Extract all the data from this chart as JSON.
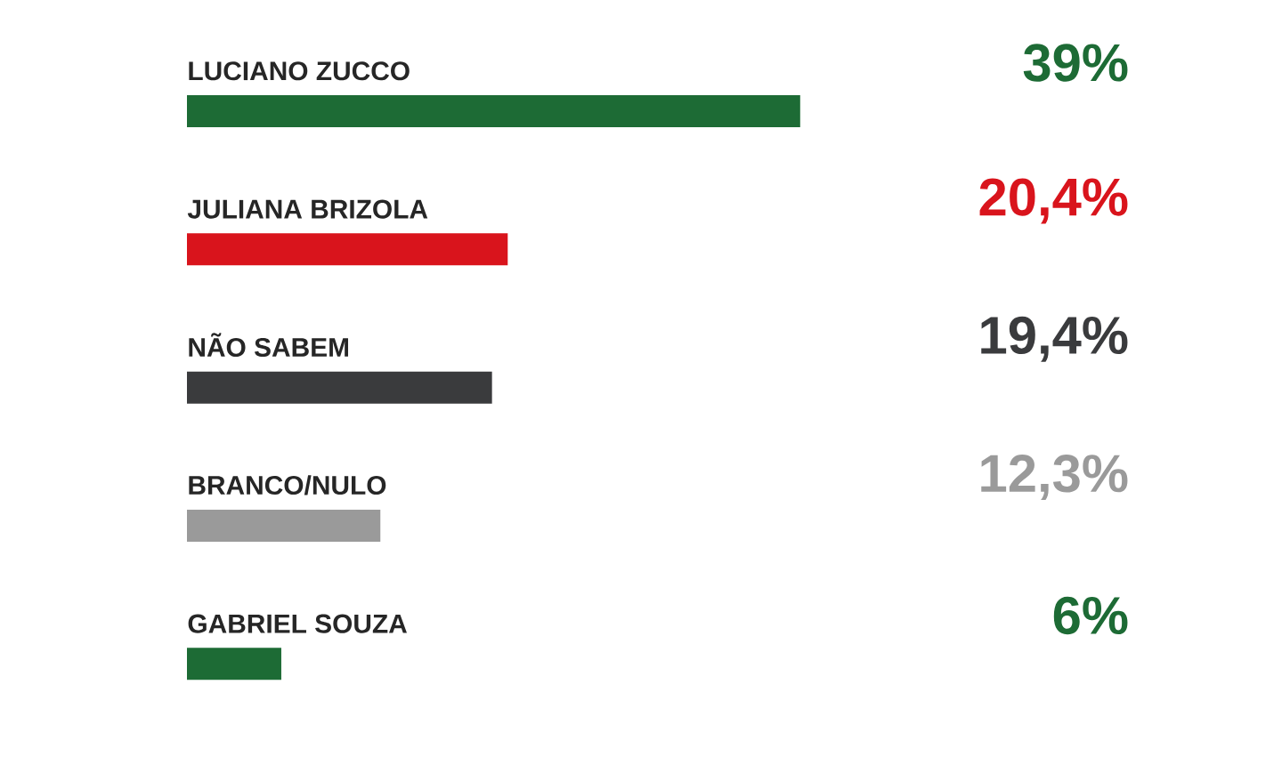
{
  "chart_data": {
    "type": "bar",
    "orientation": "horizontal",
    "categories": [
      "LUCIANO ZUCCO",
      "JULIANA BRIZOLA",
      "NÃO SABEM",
      "BRANCO/NULO",
      "GABRIEL SOUZA"
    ],
    "values": [
      39,
      20.4,
      19.4,
      12.3,
      6
    ],
    "colors": [
      "#1d6b35",
      "#d9141c",
      "#3a3b3d",
      "#9a9a9a",
      "#1d6b35"
    ],
    "value_labels": [
      "39%",
      "20,4%",
      "19,4%",
      "12,3%",
      "6%"
    ]
  }
}
